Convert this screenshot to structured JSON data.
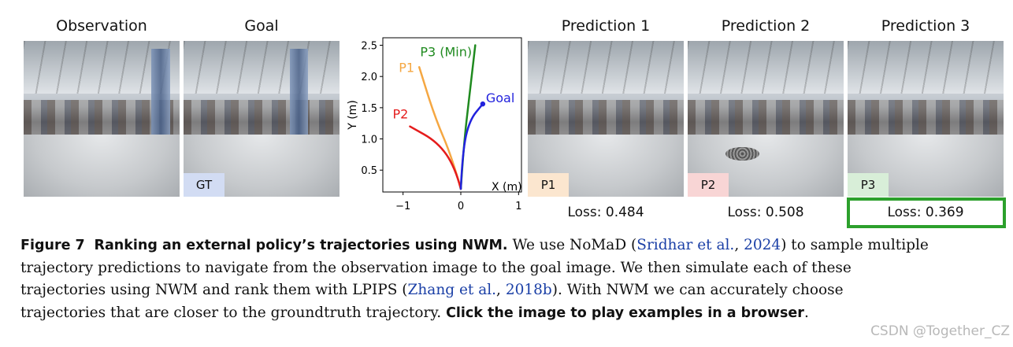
{
  "panels": {
    "observation_title": "Observation",
    "goal_title": "Goal",
    "goal_tag": "GT",
    "prediction_titles": [
      "Prediction 1",
      "Prediction 2",
      "Prediction 3"
    ],
    "prediction_tags": [
      "P1",
      "P2",
      "P3"
    ],
    "losses": [
      "Loss: 0.484",
      "Loss: 0.508",
      "Loss: 0.369"
    ],
    "tag_colors": {
      "gt": "#d2dcf3",
      "p1": "#fbe6cf",
      "p2": "#f8d5d5",
      "p3": "#d8eed8"
    },
    "best_box_color": "#2ca02c"
  },
  "chart_data": {
    "type": "line",
    "xlabel": "X (m)",
    "ylabel": "Y (m)",
    "xlim": [
      -1.35,
      1.05
    ],
    "ylim": [
      0.15,
      2.62
    ],
    "xticks": [
      -1,
      0,
      1
    ],
    "yticks": [
      0.5,
      1.0,
      1.5,
      2.0,
      2.5
    ],
    "series": [
      {
        "name": "P1",
        "color": "#f5a742",
        "points": [
          [
            0,
            0.2
          ],
          [
            -0.15,
            0.7
          ],
          [
            -0.45,
            1.35
          ],
          [
            -0.72,
            2.15
          ]
        ]
      },
      {
        "name": "P2",
        "color": "#e51c1c",
        "points": [
          [
            0,
            0.2
          ],
          [
            -0.1,
            0.55
          ],
          [
            -0.4,
            0.95
          ],
          [
            -0.88,
            1.2
          ]
        ]
      },
      {
        "name": "P3 (Min)",
        "color": "#1f8a1f",
        "points": [
          [
            0,
            0.2
          ],
          [
            0.05,
            0.9
          ],
          [
            0.15,
            1.7
          ],
          [
            0.25,
            2.5
          ]
        ]
      },
      {
        "name": "Goal",
        "color": "#2222dd",
        "points": [
          [
            0,
            0.2
          ],
          [
            0.03,
            0.8
          ],
          [
            0.15,
            1.3
          ],
          [
            0.38,
            1.56
          ]
        ]
      }
    ],
    "annotations": [
      {
        "text": "P1",
        "color": "#f5a742"
      },
      {
        "text": "P2",
        "color": "#e51c1c"
      },
      {
        "text": "P3 (Min)",
        "color": "#1f8a1f"
      },
      {
        "text": "Goal",
        "color": "#2222dd"
      }
    ]
  },
  "caption": {
    "label": "Figure 7",
    "title": "Ranking an external policy’s trajectories using NWM.",
    "l1_a": "We use NoMaD (",
    "cite1_a": "Sridhar et al.",
    "cite1_mid": ", ",
    "cite1_b": "2024",
    "l1_b": ") to sample multiple",
    "line2": "trajectory predictions to navigate from the observation image to the goal image. We then simulate each of these",
    "l3_a": "trajectories using NWM and rank them with LPIPS (",
    "cite2_a": "Zhang et al.",
    "cite2_mid": ", ",
    "cite2_b": "2018b",
    "l3_b": "). With NWM we can accurately choose",
    "l4_a": "trajectories that are closer to the groundtruth trajectory.",
    "l4_bold": "Click the image to play examples in a browser",
    "l4_end": "."
  },
  "watermark": "CSDN @Together_CZ"
}
